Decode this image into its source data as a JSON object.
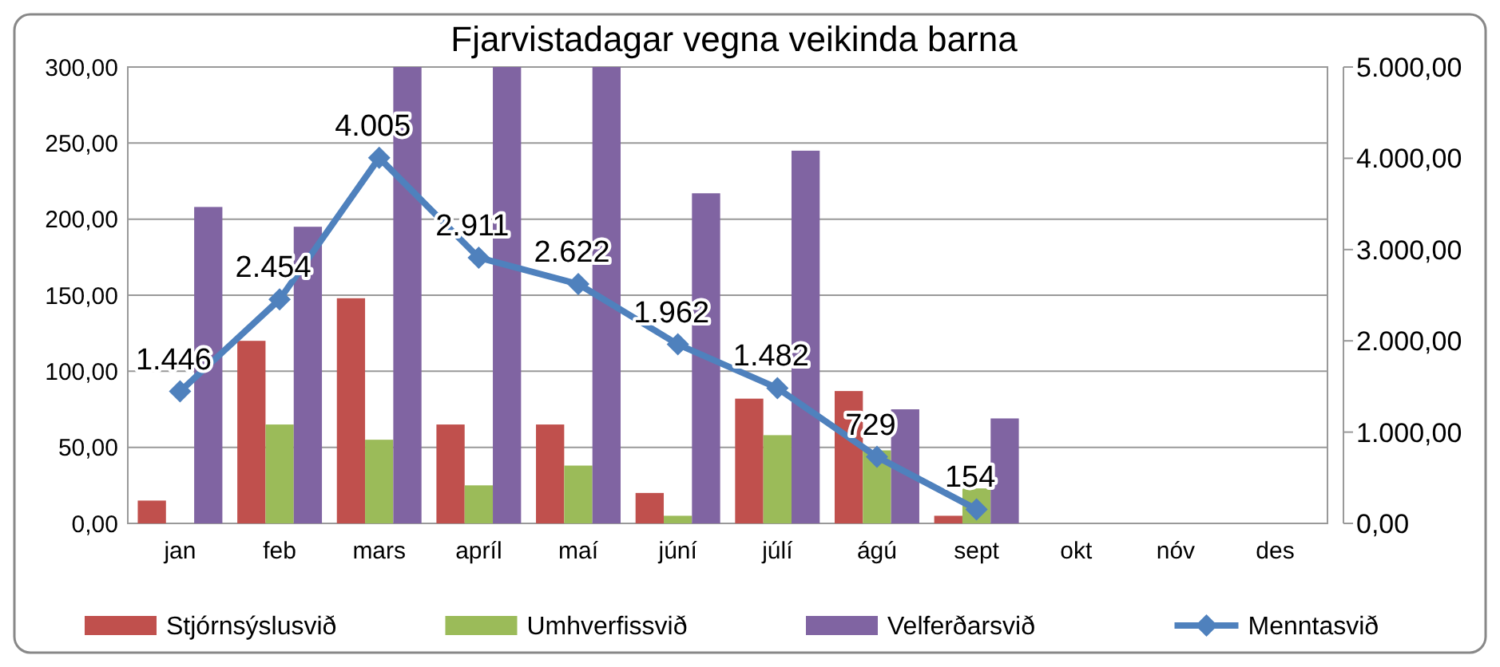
{
  "chart_data": {
    "type": "bar",
    "title": "Fjarvistadagar vegna veikinda barna",
    "categories": [
      "jan",
      "feb",
      "mars",
      "apríl",
      "maí",
      "júní",
      "júlí",
      "ágú",
      "sept",
      "okt",
      "nóv",
      "des"
    ],
    "series": [
      {
        "name": "Stjórnsýslusvið",
        "color": "#c0504d",
        "values": [
          15,
          120,
          148,
          65,
          65,
          20,
          82,
          87,
          5,
          null,
          null,
          null
        ]
      },
      {
        "name": "Umhverfissvið",
        "color": "#9bbb59",
        "values": [
          0,
          65,
          55,
          25,
          38,
          5,
          58,
          48,
          23,
          null,
          null,
          null
        ]
      },
      {
        "name": "Velferðarsvið",
        "color": "#8064a2",
        "values": [
          208,
          195,
          300,
          300,
          300,
          217,
          245,
          75,
          69,
          null,
          null,
          null
        ]
      },
      {
        "name": "Menntasvið",
        "color": "#4f81bd",
        "type": "line",
        "axis": "y2",
        "marker": "diamond",
        "values": [
          1446,
          2454,
          4005,
          2911,
          2622,
          1962,
          1482,
          729,
          154,
          null,
          null,
          null
        ],
        "value_labels": [
          "1.446",
          "2.454",
          "4.005",
          "2.911",
          "2.622",
          "1.962",
          "1.482",
          "729",
          "154",
          null,
          null,
          null
        ]
      }
    ],
    "ylim": [
      0,
      300
    ],
    "yticks": [
      {
        "value": 0,
        "label": "0,00"
      },
      {
        "value": 50,
        "label": "50,00"
      },
      {
        "value": 100,
        "label": "100,00"
      },
      {
        "value": 150,
        "label": "150,00"
      },
      {
        "value": 200,
        "label": "200,00"
      },
      {
        "value": 250,
        "label": "250,00"
      },
      {
        "value": 300,
        "label": "300,00"
      }
    ],
    "y2lim": [
      0,
      5000
    ],
    "y2ticks": [
      {
        "value": 0,
        "label": "0,00"
      },
      {
        "value": 1000,
        "label": "1.000,00"
      },
      {
        "value": 2000,
        "label": "2.000,00"
      },
      {
        "value": 3000,
        "label": "3.000,00"
      },
      {
        "value": 4000,
        "label": "4.000,00"
      },
      {
        "value": 5000,
        "label": "5.000,00"
      }
    ],
    "grid": "y",
    "legend": "bottom"
  }
}
